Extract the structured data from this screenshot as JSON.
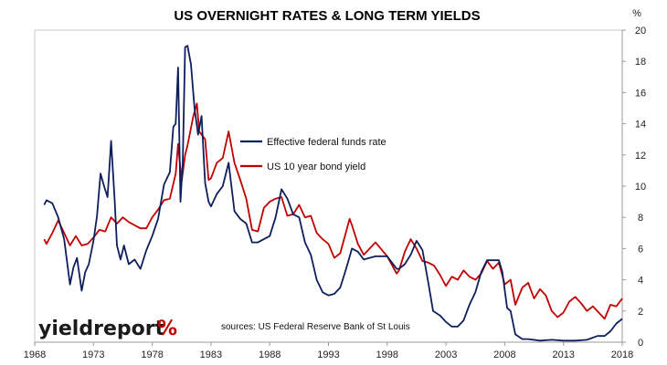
{
  "colors": {
    "fed_funds": "#0d1f5c",
    "bond_yield": "#c00000",
    "logo_pct": "#c00000",
    "logo_pct_accent": "#2a8a2a"
  },
  "logo": {
    "text": "yieldreport",
    "symbol": "%"
  },
  "source_note": "sources: US Federal Reserve Bank of St Louis",
  "chart_data": {
    "type": "line",
    "title": "US OVERNIGHT RATES & LONG TERM YIELDS",
    "y_unit": "%",
    "xlim": [
      1968,
      2018
    ],
    "ylim": [
      0,
      20
    ],
    "x_ticks": [
      "1968",
      "1973",
      "1978",
      "1983",
      "1988",
      "1993",
      "1998",
      "2003",
      "2008",
      "2013",
      "2018"
    ],
    "y_ticks": [
      "0",
      "2",
      "4",
      "6",
      "8",
      "10",
      "12",
      "14",
      "16",
      "18",
      "20"
    ],
    "legend_position": "center",
    "grid": false,
    "series": [
      {
        "name": "Effective federal funds rate",
        "color_key": "fed_funds",
        "x": [
          1968.8,
          1969.0,
          1969.5,
          1970.0,
          1970.5,
          1971.0,
          1971.3,
          1971.6,
          1972.0,
          1972.3,
          1972.6,
          1973.0,
          1973.3,
          1973.6,
          1973.9,
          1974.2,
          1974.5,
          1974.8,
          1975.0,
          1975.3,
          1975.6,
          1976.0,
          1976.5,
          1977.0,
          1977.5,
          1978.0,
          1978.5,
          1979.0,
          1979.5,
          1979.8,
          1980.0,
          1980.2,
          1980.4,
          1980.6,
          1980.8,
          1981.0,
          1981.3,
          1981.6,
          1981.9,
          1982.2,
          1982.5,
          1982.8,
          1983.0,
          1983.5,
          1984.0,
          1984.5,
          1985.0,
          1985.5,
          1986.0,
          1986.5,
          1987.0,
          1987.5,
          1988.0,
          1988.5,
          1989.0,
          1989.5,
          1990.0,
          1990.5,
          1991.0,
          1991.5,
          1992.0,
          1992.5,
          1993.0,
          1993.5,
          1994.0,
          1994.5,
          1995.0,
          1995.5,
          1996.0,
          1997.0,
          1998.0,
          1998.8,
          1999.0,
          1999.5,
          2000.0,
          2000.5,
          2001.0,
          2001.5,
          2001.9,
          2002.5,
          2003.0,
          2003.5,
          2004.0,
          2004.5,
          2005.0,
          2005.5,
          2006.0,
          2006.5,
          2007.0,
          2007.5,
          2007.8,
          2008.2,
          2008.5,
          2008.9,
          2009.5,
          2010.0,
          2011.0,
          2012.0,
          2013.0,
          2014.0,
          2015.0,
          2015.9,
          2016.5,
          2017.0,
          2017.5,
          2018.0
        ],
        "y": [
          8.8,
          9.1,
          8.9,
          8.0,
          6.6,
          3.7,
          4.8,
          5.4,
          3.3,
          4.5,
          5.0,
          6.5,
          8.1,
          10.8,
          10.0,
          9.3,
          12.9,
          9.2,
          6.2,
          5.3,
          6.2,
          5.0,
          5.3,
          4.7,
          5.9,
          6.8,
          7.9,
          10.1,
          10.9,
          13.8,
          14.0,
          17.6,
          9.0,
          11.5,
          18.9,
          19.0,
          17.8,
          15.0,
          13.3,
          14.5,
          10.2,
          9.0,
          8.7,
          9.5,
          10.0,
          11.5,
          8.4,
          7.9,
          7.6,
          6.4,
          6.4,
          6.6,
          6.8,
          8.0,
          9.8,
          9.2,
          8.2,
          8.0,
          6.4,
          5.6,
          4.0,
          3.2,
          3.0,
          3.1,
          3.5,
          4.7,
          6.0,
          5.8,
          5.3,
          5.5,
          5.5,
          4.7,
          4.7,
          5.0,
          5.6,
          6.5,
          5.9,
          3.8,
          2.0,
          1.7,
          1.3,
          1.0,
          1.0,
          1.4,
          2.4,
          3.2,
          4.5,
          5.25,
          5.25,
          5.25,
          4.5,
          2.2,
          2.0,
          0.5,
          0.2,
          0.2,
          0.1,
          0.15,
          0.1,
          0.1,
          0.15,
          0.4,
          0.4,
          0.7,
          1.2,
          1.5
        ]
      },
      {
        "name": "US 10 year bond yield",
        "color_key": "bond_yield",
        "x": [
          1968.8,
          1969.0,
          1969.5,
          1970.0,
          1970.5,
          1971.0,
          1971.5,
          1972.0,
          1972.5,
          1973.0,
          1973.5,
          1974.0,
          1974.5,
          1975.0,
          1975.5,
          1976.0,
          1976.5,
          1977.0,
          1977.5,
          1978.0,
          1978.5,
          1979.0,
          1979.5,
          1980.0,
          1980.2,
          1980.5,
          1980.8,
          1981.0,
          1981.5,
          1981.8,
          1982.0,
          1982.5,
          1982.8,
          1983.0,
          1983.5,
          1984.0,
          1984.5,
          1985.0,
          1985.5,
          1986.0,
          1986.5,
          1987.0,
          1987.5,
          1988.0,
          1988.5,
          1989.0,
          1989.5,
          1990.0,
          1990.5,
          1991.0,
          1991.5,
          1992.0,
          1992.5,
          1993.0,
          1993.5,
          1994.0,
          1994.8,
          1995.0,
          1995.5,
          1996.0,
          1997.0,
          1998.0,
          1998.8,
          1999.0,
          1999.5,
          2000.0,
          2000.5,
          2001.0,
          2001.5,
          2002.0,
          2002.5,
          2003.0,
          2003.5,
          2004.0,
          2004.5,
          2005.0,
          2005.5,
          2006.0,
          2006.5,
          2007.0,
          2007.5,
          2008.0,
          2008.5,
          2008.9,
          2009.5,
          2010.0,
          2010.5,
          2011.0,
          2011.5,
          2012.0,
          2012.5,
          2013.0,
          2013.5,
          2014.0,
          2014.5,
          2015.0,
          2015.5,
          2016.0,
          2016.5,
          2017.0,
          2017.5,
          2018.0
        ],
        "y": [
          6.6,
          6.3,
          7.0,
          7.8,
          7.0,
          6.2,
          6.8,
          6.2,
          6.3,
          6.7,
          7.2,
          7.1,
          8.0,
          7.6,
          8.0,
          7.7,
          7.5,
          7.3,
          7.3,
          8.0,
          8.5,
          9.1,
          9.2,
          10.8,
          12.7,
          10.3,
          12.0,
          12.6,
          14.5,
          15.3,
          13.5,
          13.0,
          10.4,
          10.5,
          11.5,
          11.8,
          13.5,
          11.5,
          10.4,
          9.2,
          7.2,
          7.1,
          8.6,
          9.0,
          9.2,
          9.3,
          8.1,
          8.2,
          8.8,
          8.0,
          8.1,
          7.0,
          6.6,
          6.3,
          5.4,
          5.7,
          7.9,
          7.5,
          6.3,
          5.6,
          6.4,
          5.5,
          4.4,
          4.6,
          5.8,
          6.6,
          6.0,
          5.2,
          5.1,
          4.9,
          4.3,
          3.6,
          4.2,
          4.0,
          4.6,
          4.2,
          4.0,
          4.4,
          5.2,
          4.7,
          5.1,
          3.7,
          4.0,
          2.4,
          3.5,
          3.8,
          2.8,
          3.4,
          3.0,
          2.0,
          1.6,
          1.9,
          2.6,
          2.9,
          2.5,
          2.0,
          2.3,
          1.9,
          1.5,
          2.4,
          2.3,
          2.8
        ]
      }
    ]
  }
}
